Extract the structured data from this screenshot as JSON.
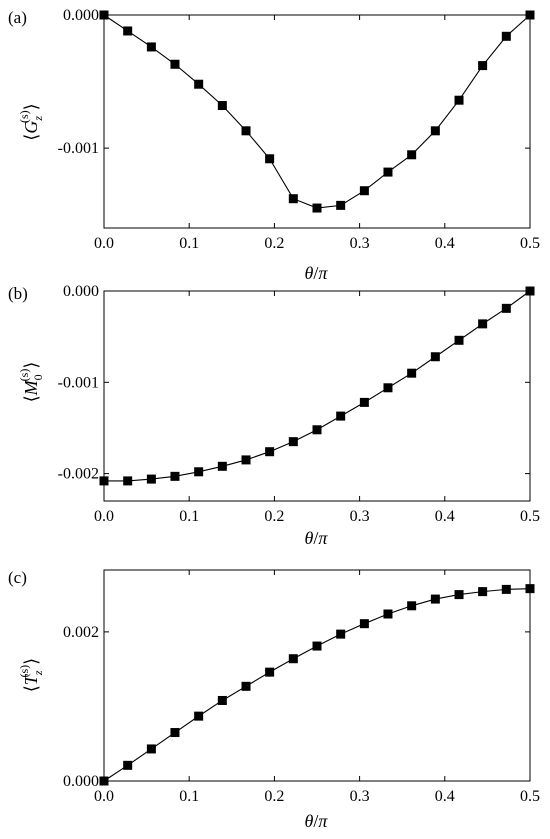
{
  "chart_data": [
    {
      "type": "line",
      "panel_label": "(a)",
      "ylabel_parts": {
        "open": "⟨",
        "symbol": "G",
        "sub": "z",
        "sup": "(s)",
        "close": "⟩"
      },
      "xlabel_parts": {
        "sym1": "θ",
        "slash": "/",
        "sym2": "π"
      },
      "xlim": [
        0,
        0.5
      ],
      "ylim": [
        -0.0016,
        0.0
      ],
      "xticks": [
        0.0,
        0.1,
        0.2,
        0.3,
        0.4,
        0.5
      ],
      "xtick_labels": [
        "0.0",
        "0.1",
        "0.2",
        "0.3",
        "0.4",
        "0.5"
      ],
      "yticks": [
        0.0,
        -0.001
      ],
      "ytick_labels": [
        "0.000",
        "-0.001"
      ],
      "marker": "square",
      "series": [
        {
          "color": "#000000",
          "x": [
            0.0,
            0.0278,
            0.0556,
            0.0833,
            0.1111,
            0.1389,
            0.1667,
            0.1944,
            0.2222,
            0.25,
            0.2778,
            0.3056,
            0.3333,
            0.3611,
            0.3889,
            0.4167,
            0.4444,
            0.4722,
            0.5
          ],
          "y": [
            0.0,
            -0.00012,
            -0.00024,
            -0.00037,
            -0.00052,
            -0.00068,
            -0.00087,
            -0.00108,
            -0.00138,
            -0.00145,
            -0.00143,
            -0.00132,
            -0.00118,
            -0.00105,
            -0.00087,
            -0.00064,
            -0.00038,
            -0.00016,
            0.0
          ]
        }
      ]
    },
    {
      "type": "line",
      "panel_label": "(b)",
      "ylabel_parts": {
        "open": "⟨",
        "symbol": "M",
        "sub": "0",
        "sup": "(s)",
        "close": "⟩"
      },
      "xlabel_parts": {
        "sym1": "θ",
        "slash": "/",
        "sym2": "π"
      },
      "xlim": [
        0,
        0.5
      ],
      "ylim": [
        -0.0023,
        0.0
      ],
      "xticks": [
        0.0,
        0.1,
        0.2,
        0.3,
        0.4,
        0.5
      ],
      "xtick_labels": [
        "0.0",
        "0.1",
        "0.2",
        "0.3",
        "0.4",
        "0.5"
      ],
      "yticks": [
        0.0,
        -0.001,
        -0.002
      ],
      "ytick_labels": [
        "0.000",
        "-0.001",
        "-0.002"
      ],
      "marker": "square",
      "series": [
        {
          "color": "#000000",
          "x": [
            0.0,
            0.0278,
            0.0556,
            0.0833,
            0.1111,
            0.1389,
            0.1667,
            0.1944,
            0.2222,
            0.25,
            0.2778,
            0.3056,
            0.3333,
            0.3611,
            0.3889,
            0.4167,
            0.4444,
            0.4722,
            0.5
          ],
          "y": [
            -0.00208,
            -0.00208,
            -0.00206,
            -0.00203,
            -0.00198,
            -0.00192,
            -0.00185,
            -0.00176,
            -0.00165,
            -0.00152,
            -0.00137,
            -0.00122,
            -0.00106,
            -0.0009,
            -0.00072,
            -0.00054,
            -0.00036,
            -0.00019,
            0.0
          ]
        }
      ]
    },
    {
      "type": "line",
      "panel_label": "(c)",
      "ylabel_parts": {
        "open": "⟨",
        "symbol": "T",
        "sub": "z",
        "sup": "(s)",
        "close": "⟩"
      },
      "xlabel_parts": {
        "sym1": "θ",
        "slash": "/",
        "sym2": "π"
      },
      "xlim": [
        0,
        0.5
      ],
      "ylim": [
        0.0,
        0.00283
      ],
      "xticks": [
        0.0,
        0.1,
        0.2,
        0.3,
        0.4,
        0.5
      ],
      "xtick_labels": [
        "0.0",
        "0.1",
        "0.2",
        "0.3",
        "0.4",
        "0.5"
      ],
      "yticks": [
        0.0,
        0.002
      ],
      "ytick_labels": [
        "0.000",
        "0.002"
      ],
      "marker": "square",
      "series": [
        {
          "color": "#000000",
          "x": [
            0.0,
            0.0278,
            0.0556,
            0.0833,
            0.1111,
            0.1389,
            0.1667,
            0.1944,
            0.2222,
            0.25,
            0.2778,
            0.3056,
            0.3333,
            0.3611,
            0.3889,
            0.4167,
            0.4444,
            0.4722,
            0.5
          ],
          "y": [
            0.0,
            0.00021,
            0.00043,
            0.00065,
            0.00087,
            0.00108,
            0.00127,
            0.00146,
            0.00164,
            0.00181,
            0.00197,
            0.00211,
            0.00224,
            0.00235,
            0.00244,
            0.0025,
            0.00254,
            0.00257,
            0.00258
          ]
        }
      ]
    }
  ]
}
